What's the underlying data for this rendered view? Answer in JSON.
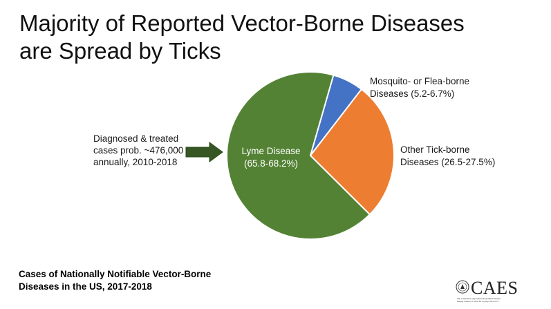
{
  "title_lines": [
    "Majority of Reported Vector-Borne Diseases",
    "are Spread by Ticks"
  ],
  "annotation": {
    "lines": [
      "Diagnosed & treated",
      "cases prob. ~476,000",
      "annually, 2010-2018"
    ]
  },
  "footer_lines": [
    "Cases of Nationally Notifiable Vector-Borne",
    "Diseases in the US, 2017-2018"
  ],
  "logo": {
    "name": "CAES",
    "subtitle_line1": "The Connecticut Agricultural Experiment Station",
    "subtitle_line2": "Putting Science to Work for Society since 1875"
  },
  "colors": {
    "lyme": "#548235",
    "other_tick": "#ED7D31",
    "mosquito_flea": "#4472C4",
    "arrow": "#375623"
  },
  "chart_data": {
    "type": "pie",
    "slices": [
      {
        "label_lines": [
          "Lyme Disease",
          "(65.8-68.2%)"
        ],
        "value": 67.0,
        "color": "#548235",
        "label_position": "inside"
      },
      {
        "label_lines": [
          "Other Tick-borne",
          "Diseases (26.5-27.5%)"
        ],
        "value": 27.0,
        "color": "#ED7D31",
        "label_position": "outside-right"
      },
      {
        "label_lines": [
          "Mosquito- or Flea-borne",
          "Diseases (5.2-6.7%)"
        ],
        "value": 6.0,
        "color": "#4472C4",
        "label_position": "outside-top-right"
      }
    ],
    "start": "clockwise from the mosquito/flea slice near the top"
  }
}
